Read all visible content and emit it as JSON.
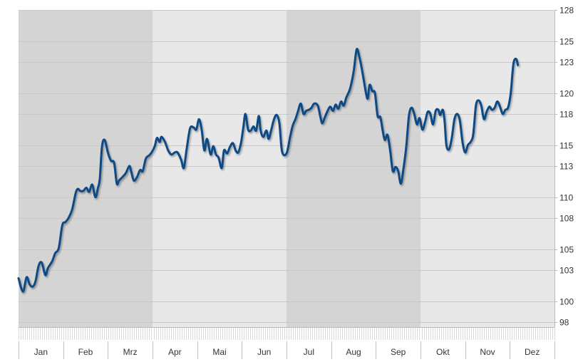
{
  "chart_data": {
    "type": "line",
    "title": "",
    "xlabel": "",
    "ylabel": "",
    "categories": [
      "Jan",
      "Feb",
      "Mrz",
      "Apr",
      "Mai",
      "Jun",
      "Jul",
      "Aug",
      "Sep",
      "Okt",
      "Nov",
      "Dez"
    ],
    "ylim": [
      97.5,
      128
    ],
    "yticks": [
      98,
      100,
      103,
      105,
      108,
      110,
      113,
      115,
      118,
      120,
      123,
      125,
      128
    ],
    "grid": true,
    "y_axis_side": "right",
    "shaded_quarters": [
      "Q1",
      "Q3"
    ],
    "colors": {
      "line": "#0d4a84",
      "band_dark": "#d4d4d4",
      "band_light": "#e8e8e8",
      "grid": "#c8c8c8",
      "axis": "#bbbbbb"
    },
    "series": [
      {
        "points": [
          [
            0.0,
            102.2
          ],
          [
            0.1,
            100.9
          ],
          [
            0.18,
            102.3
          ],
          [
            0.25,
            101.6
          ],
          [
            0.32,
            101.4
          ],
          [
            0.38,
            101.9
          ],
          [
            0.45,
            103.4
          ],
          [
            0.52,
            103.7
          ],
          [
            0.6,
            102.5
          ],
          [
            0.66,
            103.2
          ],
          [
            0.75,
            103.8
          ],
          [
            0.82,
            104.6
          ],
          [
            0.9,
            105.1
          ],
          [
            0.98,
            107.3
          ],
          [
            1.05,
            107.6
          ],
          [
            1.12,
            108.0
          ],
          [
            1.2,
            108.8
          ],
          [
            1.28,
            110.4
          ],
          [
            1.33,
            110.8
          ],
          [
            1.38,
            110.6
          ],
          [
            1.45,
            110.6
          ],
          [
            1.52,
            110.9
          ],
          [
            1.58,
            110.5
          ],
          [
            1.65,
            111.2
          ],
          [
            1.72,
            110.0
          ],
          [
            1.78,
            110.9
          ],
          [
            1.82,
            111.8
          ],
          [
            1.87,
            114.9
          ],
          [
            1.93,
            115.5
          ],
          [
            2.0,
            114.3
          ],
          [
            2.07,
            113.5
          ],
          [
            2.14,
            113.3
          ],
          [
            2.2,
            111.3
          ],
          [
            2.25,
            111.6
          ],
          [
            2.32,
            111.9
          ],
          [
            2.4,
            112.3
          ],
          [
            2.48,
            113.0
          ],
          [
            2.52,
            112.5
          ],
          [
            2.58,
            111.6
          ],
          [
            2.65,
            111.9
          ],
          [
            2.72,
            112.6
          ],
          [
            2.78,
            112.5
          ],
          [
            2.85,
            113.7
          ],
          [
            2.92,
            114.0
          ],
          [
            2.98,
            114.3
          ],
          [
            3.05,
            114.9
          ],
          [
            3.1,
            115.7
          ],
          [
            3.16,
            115.3
          ],
          [
            3.2,
            115.8
          ],
          [
            3.28,
            115.3
          ],
          [
            3.35,
            114.5
          ],
          [
            3.42,
            114.1
          ],
          [
            3.5,
            114.3
          ],
          [
            3.56,
            114.3
          ],
          [
            3.64,
            113.6
          ],
          [
            3.7,
            112.8
          ],
          [
            3.76,
            114.5
          ],
          [
            3.84,
            116.6
          ],
          [
            3.92,
            116.7
          ],
          [
            3.98,
            116.5
          ],
          [
            4.04,
            117.5
          ],
          [
            4.1,
            116.5
          ],
          [
            4.16,
            114.5
          ],
          [
            4.22,
            115.6
          ],
          [
            4.3,
            114.1
          ],
          [
            4.36,
            114.9
          ],
          [
            4.42,
            114.1
          ],
          [
            4.48,
            113.8
          ],
          [
            4.55,
            112.8
          ],
          [
            4.6,
            114.5
          ],
          [
            4.67,
            114.2
          ],
          [
            4.73,
            114.8
          ],
          [
            4.8,
            115.2
          ],
          [
            4.86,
            114.5
          ],
          [
            4.92,
            114.3
          ],
          [
            4.98,
            115.2
          ],
          [
            5.03,
            116.6
          ],
          [
            5.08,
            118.0
          ],
          [
            5.14,
            116.5
          ],
          [
            5.2,
            116.4
          ],
          [
            5.26,
            116.8
          ],
          [
            5.32,
            116.4
          ],
          [
            5.38,
            117.8
          ],
          [
            5.42,
            116.4
          ],
          [
            5.48,
            115.8
          ],
          [
            5.55,
            116.4
          ],
          [
            5.6,
            115.6
          ],
          [
            5.66,
            116.5
          ],
          [
            5.72,
            117.5
          ],
          [
            5.78,
            117.9
          ],
          [
            5.84,
            117.1
          ],
          [
            5.9,
            114.4
          ],
          [
            6.0,
            114.2
          ],
          [
            6.08,
            115.8
          ],
          [
            6.14,
            116.9
          ],
          [
            6.2,
            117.5
          ],
          [
            6.26,
            118.3
          ],
          [
            6.32,
            119.0
          ],
          [
            6.38,
            118.0
          ],
          [
            6.44,
            118.3
          ],
          [
            6.5,
            118.4
          ],
          [
            6.56,
            118.6
          ],
          [
            6.62,
            119.0
          ],
          [
            6.7,
            118.8
          ],
          [
            6.76,
            117.7
          ],
          [
            6.8,
            117.1
          ],
          [
            6.86,
            117.7
          ],
          [
            6.92,
            118.3
          ],
          [
            6.98,
            118.7
          ],
          [
            7.04,
            118.3
          ],
          [
            7.1,
            118.9
          ],
          [
            7.16,
            118.5
          ],
          [
            7.22,
            119.2
          ],
          [
            7.28,
            118.8
          ],
          [
            7.34,
            119.6
          ],
          [
            7.42,
            120.4
          ],
          [
            7.5,
            122.0
          ],
          [
            7.57,
            124.2
          ],
          [
            7.63,
            123.5
          ],
          [
            7.7,
            122.0
          ],
          [
            7.78,
            120.0
          ],
          [
            7.82,
            119.5
          ],
          [
            7.86,
            120.8
          ],
          [
            7.92,
            120.2
          ],
          [
            7.98,
            120.0
          ],
          [
            8.04,
            117.8
          ],
          [
            8.1,
            117.7
          ],
          [
            8.15,
            116.5
          ],
          [
            8.2,
            115.5
          ],
          [
            8.26,
            116.0
          ],
          [
            8.32,
            114.5
          ],
          [
            8.38,
            112.5
          ],
          [
            8.44,
            112.9
          ],
          [
            8.5,
            112.5
          ],
          [
            8.56,
            111.3
          ],
          [
            8.62,
            112.8
          ],
          [
            8.68,
            114.8
          ],
          [
            8.74,
            117.8
          ],
          [
            8.8,
            118.6
          ],
          [
            8.86,
            118.0
          ],
          [
            8.92,
            117.0
          ],
          [
            8.98,
            117.6
          ],
          [
            9.04,
            116.5
          ],
          [
            9.1,
            117.2
          ],
          [
            9.16,
            118.2
          ],
          [
            9.22,
            118.0
          ],
          [
            9.28,
            117.0
          ],
          [
            9.34,
            118.3
          ],
          [
            9.4,
            118.4
          ],
          [
            9.44,
            117.9
          ],
          [
            9.5,
            118.4
          ],
          [
            9.54,
            117.3
          ],
          [
            9.58,
            115.0
          ],
          [
            9.64,
            114.6
          ],
          [
            9.7,
            115.7
          ],
          [
            9.76,
            117.5
          ],
          [
            9.82,
            118.0
          ],
          [
            9.88,
            117.4
          ],
          [
            9.94,
            115.3
          ],
          [
            10.0,
            114.3
          ],
          [
            10.06,
            115.0
          ],
          [
            10.12,
            115.3
          ],
          [
            10.18,
            116.0
          ],
          [
            10.24,
            118.8
          ],
          [
            10.3,
            119.3
          ],
          [
            10.36,
            118.8
          ],
          [
            10.42,
            117.5
          ],
          [
            10.48,
            118.2
          ],
          [
            10.54,
            118.7
          ],
          [
            10.6,
            118.4
          ],
          [
            10.66,
            118.6
          ],
          [
            10.72,
            119.2
          ],
          [
            10.78,
            118.7
          ],
          [
            10.84,
            118.0
          ],
          [
            10.9,
            118.4
          ],
          [
            10.96,
            118.6
          ],
          [
            11.02,
            120.0
          ],
          [
            11.08,
            122.8
          ],
          [
            11.14,
            123.3
          ],
          [
            11.18,
            122.7
          ]
        ]
      }
    ]
  }
}
